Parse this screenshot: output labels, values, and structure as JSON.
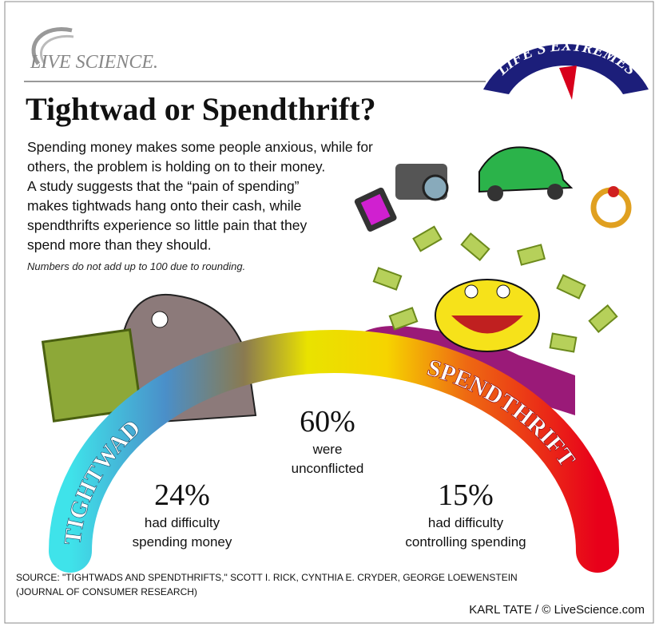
{
  "logo": {
    "text": "LIVE SCIENCE."
  },
  "badge": {
    "text": "LIFE'S EXTREMES"
  },
  "header": {
    "title": "Tightwad or Spendthrift?"
  },
  "intro": {
    "lines": [
      "Spending money makes some people anxious, while for",
      "others, the problem is holding on to their money.",
      "A study suggests that the “pain of spending”",
      "makes tightwads hang onto their cash, while",
      "spendthrifts experience so little pain that they",
      "spend more than they should."
    ],
    "note": "Numbers do not add up to 100 due to rounding."
  },
  "scale": {
    "left_label": "TIGHTWAD",
    "right_label": "SPENDTHRIFT"
  },
  "stats": [
    {
      "value": "24%",
      "lines": [
        "had difficulty",
        "spending money"
      ]
    },
    {
      "value": "60%",
      "lines": [
        "were",
        "unconflicted"
      ]
    },
    {
      "value": "15%",
      "lines": [
        "had difficulty",
        "controlling spending"
      ]
    }
  ],
  "footer": {
    "source_lines": [
      "SOURCE: \"TIGHTWADS AND SPENDTHRIFTS,\" SCOTT I. RICK, CYNTHIA E. CRYDER, GEORGE LOEWENSTEIN",
      "(JOURNAL OF CONSUMER RESEARCH)"
    ],
    "credit": "KARL TATE / © LiveScience.com"
  }
}
